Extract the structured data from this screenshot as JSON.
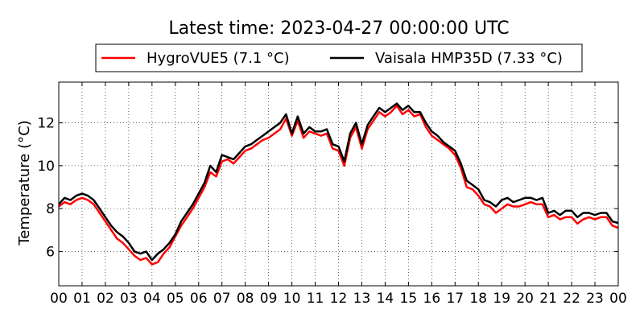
{
  "chart_data": {
    "type": "line",
    "title": "Latest time: 2023-04-27 00:00:00 UTC",
    "xlabel": "",
    "ylabel": "Temperature (°C)",
    "x_ticks": [
      "00",
      "01",
      "02",
      "03",
      "04",
      "05",
      "06",
      "07",
      "08",
      "09",
      "10",
      "11",
      "12",
      "13",
      "14",
      "15",
      "16",
      "17",
      "18",
      "19",
      "20",
      "21",
      "22",
      "23",
      "00"
    ],
    "x_unit": "hour",
    "xlim": [
      0,
      24
    ],
    "y_ticks": [
      6,
      8,
      10,
      12
    ],
    "ylim": [
      4.4,
      13.9
    ],
    "grid": true,
    "legend_position": "top-center",
    "x": [
      0,
      0.25,
      0.5,
      0.75,
      1,
      1.25,
      1.5,
      1.75,
      2,
      2.25,
      2.5,
      2.75,
      3,
      3.25,
      3.5,
      3.75,
      4,
      4.25,
      4.5,
      4.75,
      5,
      5.25,
      5.5,
      5.75,
      6,
      6.25,
      6.5,
      6.75,
      7,
      7.25,
      7.5,
      7.75,
      8,
      8.25,
      8.5,
      8.75,
      9,
      9.25,
      9.5,
      9.75,
      10,
      10.25,
      10.5,
      10.75,
      11,
      11.25,
      11.5,
      11.75,
      12,
      12.25,
      12.5,
      12.75,
      13,
      13.25,
      13.5,
      13.75,
      14,
      14.25,
      14.5,
      14.75,
      15,
      15.25,
      15.5,
      15.75,
      16,
      16.25,
      16.5,
      16.75,
      17,
      17.25,
      17.5,
      17.75,
      18,
      18.25,
      18.5,
      18.75,
      19,
      19.25,
      19.5,
      19.75,
      20,
      20.25,
      20.5,
      20.75,
      21,
      21.25,
      21.5,
      21.75,
      22,
      22.25,
      22.5,
      22.75,
      23,
      23.25,
      23.5,
      23.75,
      24
    ],
    "series": [
      {
        "name": "HygroVUE5 (7.1 °C)",
        "color": "#ff0000",
        "values": [
          8.1,
          8.3,
          8.2,
          8.4,
          8.5,
          8.4,
          8.2,
          7.8,
          7.4,
          7.0,
          6.6,
          6.4,
          6.1,
          5.8,
          5.6,
          5.7,
          5.4,
          5.5,
          5.9,
          6.2,
          6.7,
          7.2,
          7.6,
          8.0,
          8.5,
          9.0,
          9.7,
          9.5,
          10.2,
          10.3,
          10.1,
          10.4,
          10.7,
          10.8,
          11.0,
          11.2,
          11.3,
          11.5,
          11.7,
          12.2,
          11.4,
          12.1,
          11.3,
          11.6,
          11.5,
          11.4,
          11.5,
          10.8,
          10.7,
          10.0,
          11.3,
          11.8,
          10.8,
          11.7,
          12.1,
          12.5,
          12.3,
          12.5,
          12.8,
          12.4,
          12.6,
          12.3,
          12.4,
          11.8,
          11.4,
          11.2,
          11.0,
          10.8,
          10.5,
          9.9,
          9.0,
          8.9,
          8.6,
          8.2,
          8.1,
          7.8,
          8.0,
          8.2,
          8.1,
          8.1,
          8.2,
          8.3,
          8.2,
          8.2,
          7.6,
          7.7,
          7.5,
          7.6,
          7.6,
          7.3,
          7.5,
          7.6,
          7.5,
          7.6,
          7.6,
          7.2,
          7.1
        ]
      },
      {
        "name": "Vaisala HMP35D (7.33 °C)",
        "color": "#000000",
        "values": [
          8.2,
          8.5,
          8.4,
          8.6,
          8.7,
          8.6,
          8.4,
          8.0,
          7.6,
          7.2,
          6.9,
          6.7,
          6.4,
          6.0,
          5.9,
          6.0,
          5.6,
          5.9,
          6.1,
          6.4,
          6.8,
          7.4,
          7.8,
          8.2,
          8.7,
          9.2,
          10.0,
          9.7,
          10.5,
          10.4,
          10.3,
          10.6,
          10.9,
          11.0,
          11.2,
          11.4,
          11.6,
          11.8,
          12.0,
          12.4,
          11.5,
          12.3,
          11.5,
          11.8,
          11.6,
          11.6,
          11.7,
          11.0,
          10.9,
          10.2,
          11.5,
          12.0,
          11.0,
          11.9,
          12.3,
          12.7,
          12.5,
          12.7,
          12.9,
          12.6,
          12.8,
          12.5,
          12.5,
          12.0,
          11.6,
          11.4,
          11.1,
          10.9,
          10.7,
          10.1,
          9.3,
          9.1,
          8.9,
          8.4,
          8.3,
          8.1,
          8.4,
          8.5,
          8.3,
          8.4,
          8.5,
          8.5,
          8.4,
          8.5,
          7.8,
          7.9,
          7.7,
          7.9,
          7.9,
          7.6,
          7.8,
          7.8,
          7.7,
          7.8,
          7.8,
          7.4,
          7.33
        ]
      }
    ]
  }
}
